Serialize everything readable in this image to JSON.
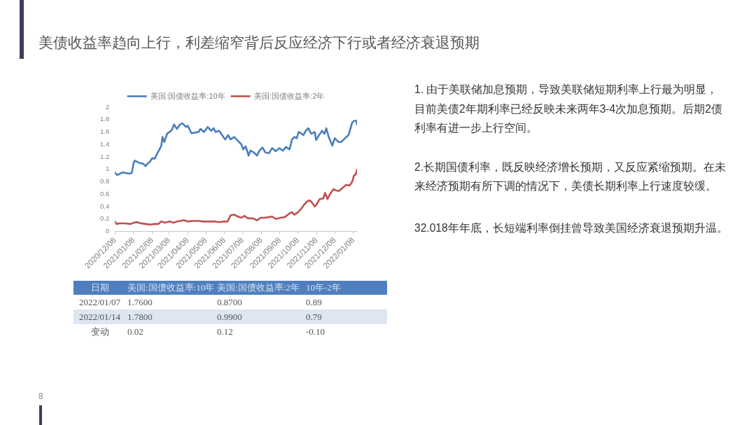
{
  "chart_data": {
    "type": "line",
    "title": "美债收益率趋向上行，利差缩窄背后反应经济下行或者经济衰退预期",
    "series": [
      {
        "name": "美国:国债收益率:10年",
        "color": "#4a7ebb",
        "x": [
          "2020-12-08",
          "2020-12-11",
          "2020-12-15",
          "2020-12-18",
          "2020-12-22",
          "2020-12-26",
          "2021-01-01",
          "2021-01-05",
          "2021-01-08",
          "2021-01-10",
          "2021-01-14",
          "2021-01-18",
          "2021-01-24",
          "2021-01-28",
          "2021-01-31",
          "2021-02-04",
          "2021-02-08",
          "2021-02-12",
          "2021-02-16",
          "2021-02-20",
          "2021-02-23",
          "2021-02-25",
          "2021-02-28",
          "2021-03-05",
          "2021-03-09",
          "2021-03-13",
          "2021-03-16",
          "2021-03-21",
          "2021-03-26",
          "2021-03-30",
          "2021-04-05",
          "2021-04-08",
          "2021-04-14",
          "2021-04-20",
          "2021-04-26",
          "2021-04-29",
          "2021-05-05",
          "2021-05-11",
          "2021-05-17",
          "2021-05-21",
          "2021-05-24",
          "2021-05-30",
          "2021-06-04",
          "2021-06-09",
          "2021-06-14",
          "2021-06-18",
          "2021-06-24",
          "2021-06-30",
          "2021-07-06",
          "2021-07-09",
          "2021-07-13",
          "2021-07-18",
          "2021-07-21",
          "2021-07-27",
          "2021-08-01",
          "2021-08-05",
          "2021-08-10",
          "2021-08-15",
          "2021-08-21",
          "2021-08-26",
          "2021-09-01",
          "2021-09-07",
          "2021-09-13",
          "2021-09-18",
          "2021-09-24",
          "2021-09-28",
          "2021-10-02",
          "2021-10-06",
          "2021-10-09",
          "2021-10-13",
          "2021-10-17",
          "2021-10-21",
          "2021-10-25",
          "2021-10-30",
          "2021-11-05",
          "2021-11-07",
          "2021-11-12",
          "2021-11-17",
          "2021-11-21",
          "2021-11-24",
          "2021-11-28",
          "2021-12-04",
          "2021-12-08",
          "2021-12-14",
          "2021-12-19",
          "2021-12-25",
          "2021-12-31",
          "2022-01-06",
          "2022-01-09",
          "2022-01-13",
          "2022-01-14"
        ],
        "values": [
          0.95,
          0.91,
          0.92,
          0.94,
          0.95,
          0.94,
          0.93,
          0.94,
          1.1,
          1.14,
          1.12,
          1.1,
          1.09,
          1.05,
          1.09,
          1.12,
          1.18,
          1.17,
          1.25,
          1.32,
          1.38,
          1.52,
          1.44,
          1.58,
          1.6,
          1.64,
          1.72,
          1.65,
          1.72,
          1.74,
          1.68,
          1.7,
          1.58,
          1.59,
          1.6,
          1.65,
          1.6,
          1.68,
          1.62,
          1.66,
          1.6,
          1.62,
          1.55,
          1.48,
          1.55,
          1.48,
          1.52,
          1.46,
          1.4,
          1.32,
          1.37,
          1.22,
          1.3,
          1.27,
          1.22,
          1.3,
          1.35,
          1.27,
          1.26,
          1.34,
          1.29,
          1.34,
          1.3,
          1.36,
          1.32,
          1.48,
          1.52,
          1.5,
          1.6,
          1.58,
          1.55,
          1.62,
          1.66,
          1.57,
          1.6,
          1.47,
          1.55,
          1.62,
          1.57,
          1.66,
          1.52,
          1.38,
          1.5,
          1.44,
          1.44,
          1.5,
          1.55,
          1.75,
          1.78,
          1.78,
          1.72
        ]
      },
      {
        "name": "美国:国债收益率:2年",
        "color": "#c0504d",
        "x": [
          "2020-12-08",
          "2020-12-11",
          "2020-12-16",
          "2020-12-24",
          "2021-01-03",
          "2021-01-08",
          "2021-01-14",
          "2021-01-20",
          "2021-01-28",
          "2021-02-04",
          "2021-02-12",
          "2021-02-18",
          "2021-02-23",
          "2021-03-01",
          "2021-03-09",
          "2021-03-15",
          "2021-03-22",
          "2021-04-01",
          "2021-04-08",
          "2021-04-16",
          "2021-04-26",
          "2021-05-03",
          "2021-05-15",
          "2021-05-23",
          "2021-05-30",
          "2021-06-07",
          "2021-06-13",
          "2021-06-18",
          "2021-06-24",
          "2021-06-30",
          "2021-07-06",
          "2021-07-11",
          "2021-07-17",
          "2021-07-25",
          "2021-08-01",
          "2021-08-07",
          "2021-08-13",
          "2021-08-21",
          "2021-08-26",
          "2021-09-01",
          "2021-09-09",
          "2021-09-16",
          "2021-09-24",
          "2021-09-28",
          "2021-10-02",
          "2021-10-07",
          "2021-10-13",
          "2021-10-19",
          "2021-10-23",
          "2021-10-27",
          "2021-10-30",
          "2021-11-05",
          "2021-11-09",
          "2021-11-13",
          "2021-11-19",
          "2021-11-22",
          "2021-11-26",
          "2021-11-30",
          "2021-12-06",
          "2021-12-10",
          "2021-12-15",
          "2021-12-21",
          "2021-12-27",
          "2022-01-02",
          "2022-01-06",
          "2022-01-09",
          "2022-01-12",
          "2022-01-14"
        ],
        "values": [
          0.16,
          0.12,
          0.13,
          0.13,
          0.12,
          0.14,
          0.15,
          0.13,
          0.12,
          0.11,
          0.12,
          0.12,
          0.16,
          0.14,
          0.16,
          0.14,
          0.16,
          0.18,
          0.16,
          0.17,
          0.17,
          0.16,
          0.16,
          0.16,
          0.15,
          0.16,
          0.16,
          0.26,
          0.27,
          0.24,
          0.22,
          0.25,
          0.21,
          0.21,
          0.18,
          0.22,
          0.22,
          0.23,
          0.24,
          0.2,
          0.22,
          0.23,
          0.29,
          0.31,
          0.27,
          0.3,
          0.36,
          0.44,
          0.48,
          0.5,
          0.48,
          0.4,
          0.45,
          0.52,
          0.53,
          0.62,
          0.52,
          0.6,
          0.68,
          0.66,
          0.65,
          0.7,
          0.75,
          0.74,
          0.8,
          0.9,
          0.92,
          0.99
        ]
      }
    ],
    "xlim": [
      "2020-12-08",
      "2022-01-14"
    ],
    "xticks": [
      {
        "value": "2020-12-08",
        "label": "2020/12/08"
      },
      {
        "value": "2021-01-08",
        "label": "2021/01/08"
      },
      {
        "value": "2021-02-08",
        "label": "2021/02/08"
      },
      {
        "value": "2021-03-08",
        "label": "2021/03/08"
      },
      {
        "value": "2021-04-08",
        "label": "2021/04/08"
      },
      {
        "value": "2021-05-08",
        "label": "2021/05/08"
      },
      {
        "value": "2021-06-08",
        "label": "2021/06/08"
      },
      {
        "value": "2021-07-08",
        "label": "2021/07/08"
      },
      {
        "value": "2021-08-08",
        "label": "2021/08/08"
      },
      {
        "value": "2021-09-08",
        "label": "2021/09/08"
      },
      {
        "value": "2021-10-08",
        "label": "2021/10/08"
      },
      {
        "value": "2021-11-08",
        "label": "2021/11/08"
      },
      {
        "value": "2021-12-08",
        "label": "2021/12/08"
      },
      {
        "value": "2022-01-08",
        "label": "2022/01/08"
      }
    ],
    "ylim": [
      0,
      2
    ],
    "yticks": [
      0,
      0.2,
      0.4,
      0.6,
      0.8,
      1,
      1.2,
      1.4,
      1.6,
      1.8,
      2
    ],
    "grid": false,
    "legend": "top",
    "marker": "none",
    "annotations": [
      "日期",
      "美国:国债收益率:10年",
      "美国:国债收益率:2年",
      "10年-2年",
      "2022/01/07",
      "1.7600",
      "0.8700",
      "0.89",
      "2022/01/14",
      "1.7800",
      "0.9900",
      "0.79",
      "变动",
      "0.02",
      "0.12",
      "-0.10",
      "1. 由于美联储加息预期，导致美联储短期利率上行最为明显，目前美债2年期利率已经反映未来两年3-4次加息预期。后期2债利率有进一步上行空间。",
      "2.长期国债利率，既反映经济增长预期，又反应紧缩预期。在未来经济预期有所下调的情况下，美债长期利率上行速度较缓。",
      "32.018年年底，长短端利率倒挂曾导致美国经济衰退预期升温。",
      "8"
    ]
  }
}
